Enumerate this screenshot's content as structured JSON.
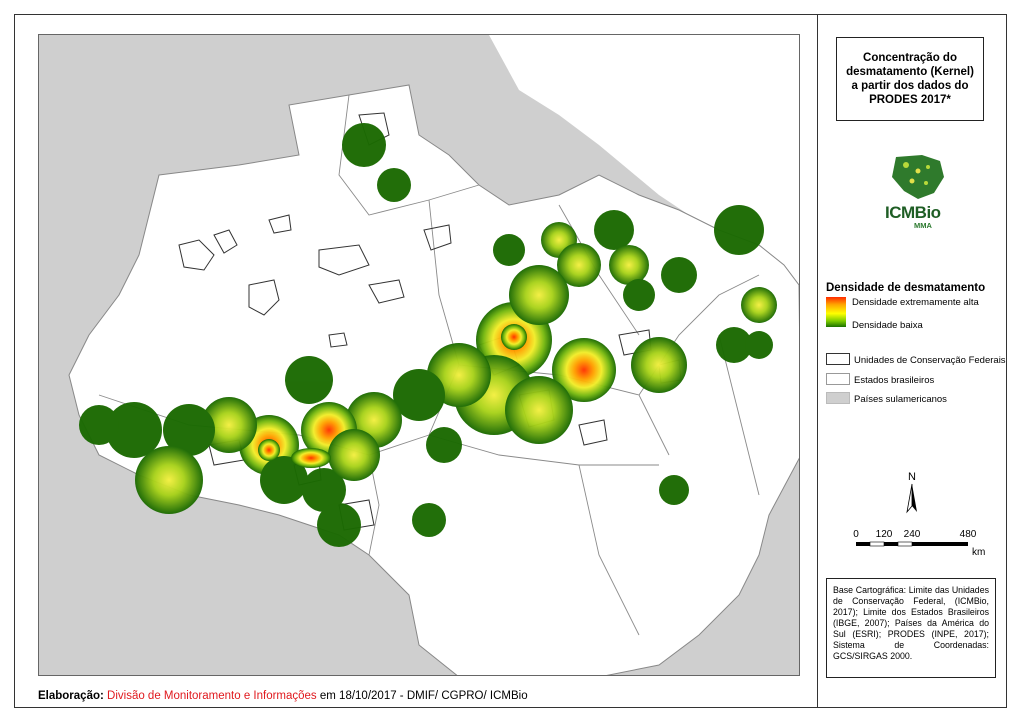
{
  "title": "Concentração do desmatamento (Kernel) a partir dos dados do PRODES 2017*",
  "logo": {
    "name": "ICMBio",
    "sub": "MMA"
  },
  "legend": {
    "density_title": "Densidade de desmatamento",
    "density_high": "Densidade extremamente alta",
    "density_low": "Densidade baixa",
    "items": [
      {
        "label": "Unidades de Conservação Federais"
      },
      {
        "label": "Estados brasileiros"
      },
      {
        "label": "Países sulamericanos"
      }
    ]
  },
  "north": "N",
  "scale": {
    "ticks": [
      "0",
      "120",
      "240",
      "480"
    ],
    "unit": "km"
  },
  "credits": "Base Cartográfica: Limite das Unidades de Conservação Federal, (ICMBio, 2017); Limite dos Estados Brasileiros (IBGE, 2007); Países da América do Sul (ESRI); PRODES (INPE, 2017); Sistema de Coordenadas: GCS/SIRGAS 2000.",
  "footer": {
    "label": "Elaboração:",
    "org": "Divisão de Monitoramento e Informações",
    "rest": " em 18/10/2017 - DMIF/ CGPRO/ ICMBio"
  },
  "colors": {
    "country": "#cfcfcf",
    "state": "#ffffff",
    "density_low": "#1a6b00",
    "density_high": "#ff2a00"
  }
}
